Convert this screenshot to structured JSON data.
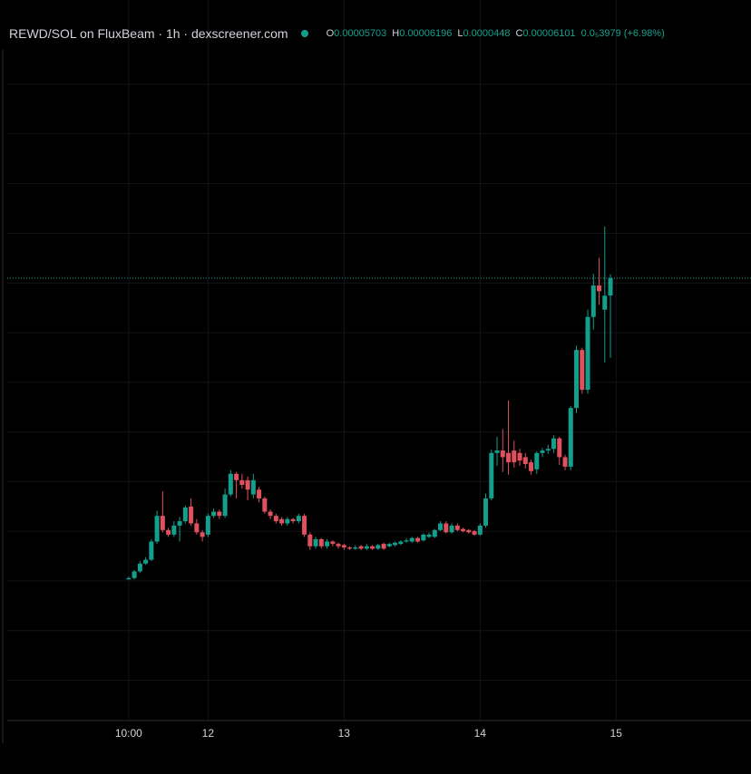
{
  "chart_data": {
    "type": "candlestick",
    "title": "REWD/SOL on FluxBeam · 1h · dexscreener.com",
    "ohlc_labels": [
      "O",
      "H",
      "L",
      "C"
    ],
    "change_label": "0.0₅3979 (+6.98%)",
    "log_scale": true,
    "grid": true,
    "up_color": "#12a08d",
    "down_color": "#e0505d",
    "xlim": [
      -22.7,
      109.8
    ],
    "xticks": [
      {
        "value": 0,
        "label": "10:00"
      },
      {
        "value": 14,
        "label": "12"
      },
      {
        "value": 38,
        "label": "13"
      },
      {
        "value": 62,
        "label": "14"
      },
      {
        "value": 86,
        "label": "15"
      }
    ],
    "ylim": [
      1.1e-05,
      0.0001477
    ],
    "open": [
      1.9e-05,
      1.91e-05,
      1.96e-05,
      2.02e-05,
      2.05e-05,
      2.2e-05,
      2.43e-05,
      2.3e-05,
      2.26e-05,
      2.34e-05,
      2.38e-05,
      2.52e-05,
      2.36e-05,
      2.28e-05,
      2.26e-05,
      2.43e-05,
      2.47e-05,
      2.43e-05,
      2.64e-05,
      2.86e-05,
      2.79e-05,
      2.79e-05,
      2.64e-05,
      2.69e-05,
      2.6e-05,
      2.47e-05,
      2.43e-05,
      2.4e-05,
      2.36e-05,
      2.4e-05,
      2.38e-05,
      2.43e-05,
      2.26e-05,
      2.16e-05,
      2.22e-05,
      2.16e-05,
      2.2e-05,
      2.18e-05,
      2.17e-05,
      2.15e-05,
      2.14e-05,
      2.16e-05,
      2.14e-05,
      2.16e-05,
      2.14e-05,
      2.18e-05,
      2.16e-05,
      2.17e-05,
      2.18e-05,
      2.2e-05,
      2.2e-05,
      2.23e-05,
      2.21e-05,
      2.24e-05,
      2.24e-05,
      2.3e-05,
      2.36e-05,
      2.28e-05,
      2.34e-05,
      2.31e-05,
      2.3e-05,
      2.29e-05,
      2.26e-05,
      2.34e-05,
      2.6e-05,
      3.1e-05,
      3.13e-05,
      3.1e-05,
      3.13e-05,
      3.1e-05,
      3.05e-05,
      2.99e-05,
      2.91e-05,
      3.1e-05,
      3.13e-05,
      3.15e-05,
      3.28e-05,
      3.05e-05,
      2.94e-05,
      3.69e-05,
      4.62e-05,
      3.96e-05,
      5.25e-05,
      5.93e-05,
      5.4e-05,
      5.703e-05
    ],
    "high": [
      1.92e-05,
      1.97e-05,
      2.04e-05,
      2.07e-05,
      2.22e-05,
      2.48e-05,
      2.67e-05,
      2.32e-05,
      2.38e-05,
      2.42e-05,
      2.53e-05,
      2.6e-05,
      2.4e-05,
      2.3e-05,
      2.45e-05,
      2.5e-05,
      2.49e-05,
      2.7e-05,
      2.9e-05,
      2.88e-05,
      2.86e-05,
      2.83e-05,
      2.86e-05,
      2.72e-05,
      2.62e-05,
      2.49e-05,
      2.45e-05,
      2.42e-05,
      2.42e-05,
      2.41e-05,
      2.45e-05,
      2.45e-05,
      2.28e-05,
      2.24e-05,
      2.23e-05,
      2.22e-05,
      2.21e-05,
      2.19e-05,
      2.18e-05,
      2.16e-05,
      2.17e-05,
      2.17e-05,
      2.18e-05,
      2.17e-05,
      2.18e-05,
      2.19e-05,
      2.19e-05,
      2.2e-05,
      2.21e-05,
      2.23e-05,
      2.24e-05,
      2.24e-05,
      2.27e-05,
      2.28e-05,
      2.31e-05,
      2.38e-05,
      2.38e-05,
      2.36e-05,
      2.36e-05,
      2.32e-05,
      2.31e-05,
      2.3e-05,
      2.36e-05,
      2.65e-05,
      3.14e-05,
      3.3e-05,
      3.4e-05,
      3.8e-05,
      3.25e-05,
      3.15e-05,
      3.1e-05,
      3.02e-05,
      3.12e-05,
      3.16e-05,
      3.2e-05,
      3.32e-05,
      3.3e-05,
      3.08e-05,
      3.72e-05,
      4.7e-05,
      4.66e-05,
      5.4e-05,
      6.2e-05,
      6.6e-05,
      7.45e-05,
      6.196e-05
    ],
    "low": [
      1.9e-05,
      1.9e-05,
      1.95e-05,
      2.01e-05,
      2.04e-05,
      2.18e-05,
      2.28e-05,
      2.24e-05,
      2.24e-05,
      2.2e-05,
      2.36e-05,
      2.34e-05,
      2.26e-05,
      2.2e-05,
      2.24e-05,
      2.41e-05,
      2.4e-05,
      2.41e-05,
      2.62e-05,
      2.6e-05,
      2.7e-05,
      2.58e-05,
      2.6e-05,
      2.56e-05,
      2.45e-05,
      2.4e-05,
      2.36e-05,
      2.34e-05,
      2.34e-05,
      2.36e-05,
      2.36e-05,
      2.24e-05,
      2.13e-05,
      2.14e-05,
      2.14e-05,
      2.14e-05,
      2.16e-05,
      2.14e-05,
      2.13e-05,
      2.13e-05,
      2.13e-05,
      2.13e-05,
      2.13e-05,
      2.13e-05,
      2.13e-05,
      2.13e-05,
      2.15e-05,
      2.16e-05,
      2.17e-05,
      2.19e-05,
      2.19e-05,
      2.19e-05,
      2.2e-05,
      2.23e-05,
      2.23e-05,
      2.29e-05,
      2.27e-05,
      2.27e-05,
      2.29e-05,
      2.28e-05,
      2.27e-05,
      2.25e-05,
      2.25e-05,
      2.32e-05,
      2.58e-05,
      2.95e-05,
      2.88e-05,
      2.85e-05,
      2.93e-05,
      2.95e-05,
      2.92e-05,
      2.85e-05,
      2.86e-05,
      3.05e-05,
      3.09e-05,
      3.1e-05,
      2.96e-05,
      2.9e-05,
      2.9e-05,
      3.62e-05,
      3.9e-05,
      3.9e-05,
      5e-05,
      5.5e-05,
      4.4e-05,
      4.48e-05
    ],
    "close": [
      1.91e-05,
      1.96e-05,
      2.02e-05,
      2.05e-05,
      2.2e-05,
      2.43e-05,
      2.3e-05,
      2.26e-05,
      2.34e-05,
      2.38e-05,
      2.51e-05,
      2.36e-05,
      2.28e-05,
      2.24e-05,
      2.43e-05,
      2.47e-05,
      2.43e-05,
      2.64e-05,
      2.86e-05,
      2.79e-05,
      2.74e-05,
      2.69e-05,
      2.79e-05,
      2.6e-05,
      2.47e-05,
      2.43e-05,
      2.38e-05,
      2.36e-05,
      2.4e-05,
      2.38e-05,
      2.43e-05,
      2.26e-05,
      2.16e-05,
      2.22e-05,
      2.16e-05,
      2.2e-05,
      2.18e-05,
      2.16e-05,
      2.15e-05,
      2.14e-05,
      2.15e-05,
      2.14e-05,
      2.16e-05,
      2.14e-05,
      2.17e-05,
      2.14e-05,
      2.18e-05,
      2.19e-05,
      2.2e-05,
      2.21e-05,
      2.23e-05,
      2.2e-05,
      2.26e-05,
      2.26e-05,
      2.3e-05,
      2.36e-05,
      2.28e-05,
      2.34e-05,
      2.3e-05,
      2.29e-05,
      2.28e-05,
      2.26e-05,
      2.34e-05,
      2.6e-05,
      3.1e-05,
      3.13e-05,
      3.05e-05,
      2.99e-05,
      2.99e-05,
      3.01e-05,
      2.97e-05,
      2.89e-05,
      3.1e-05,
      3.13e-05,
      3.15e-05,
      3.28e-05,
      3.05e-05,
      2.94e-05,
      3.69e-05,
      4.62e-05,
      3.96e-05,
      5.25e-05,
      5.93e-05,
      5.8e-05,
      5.7e-05,
      6.101e-05
    ]
  }
}
